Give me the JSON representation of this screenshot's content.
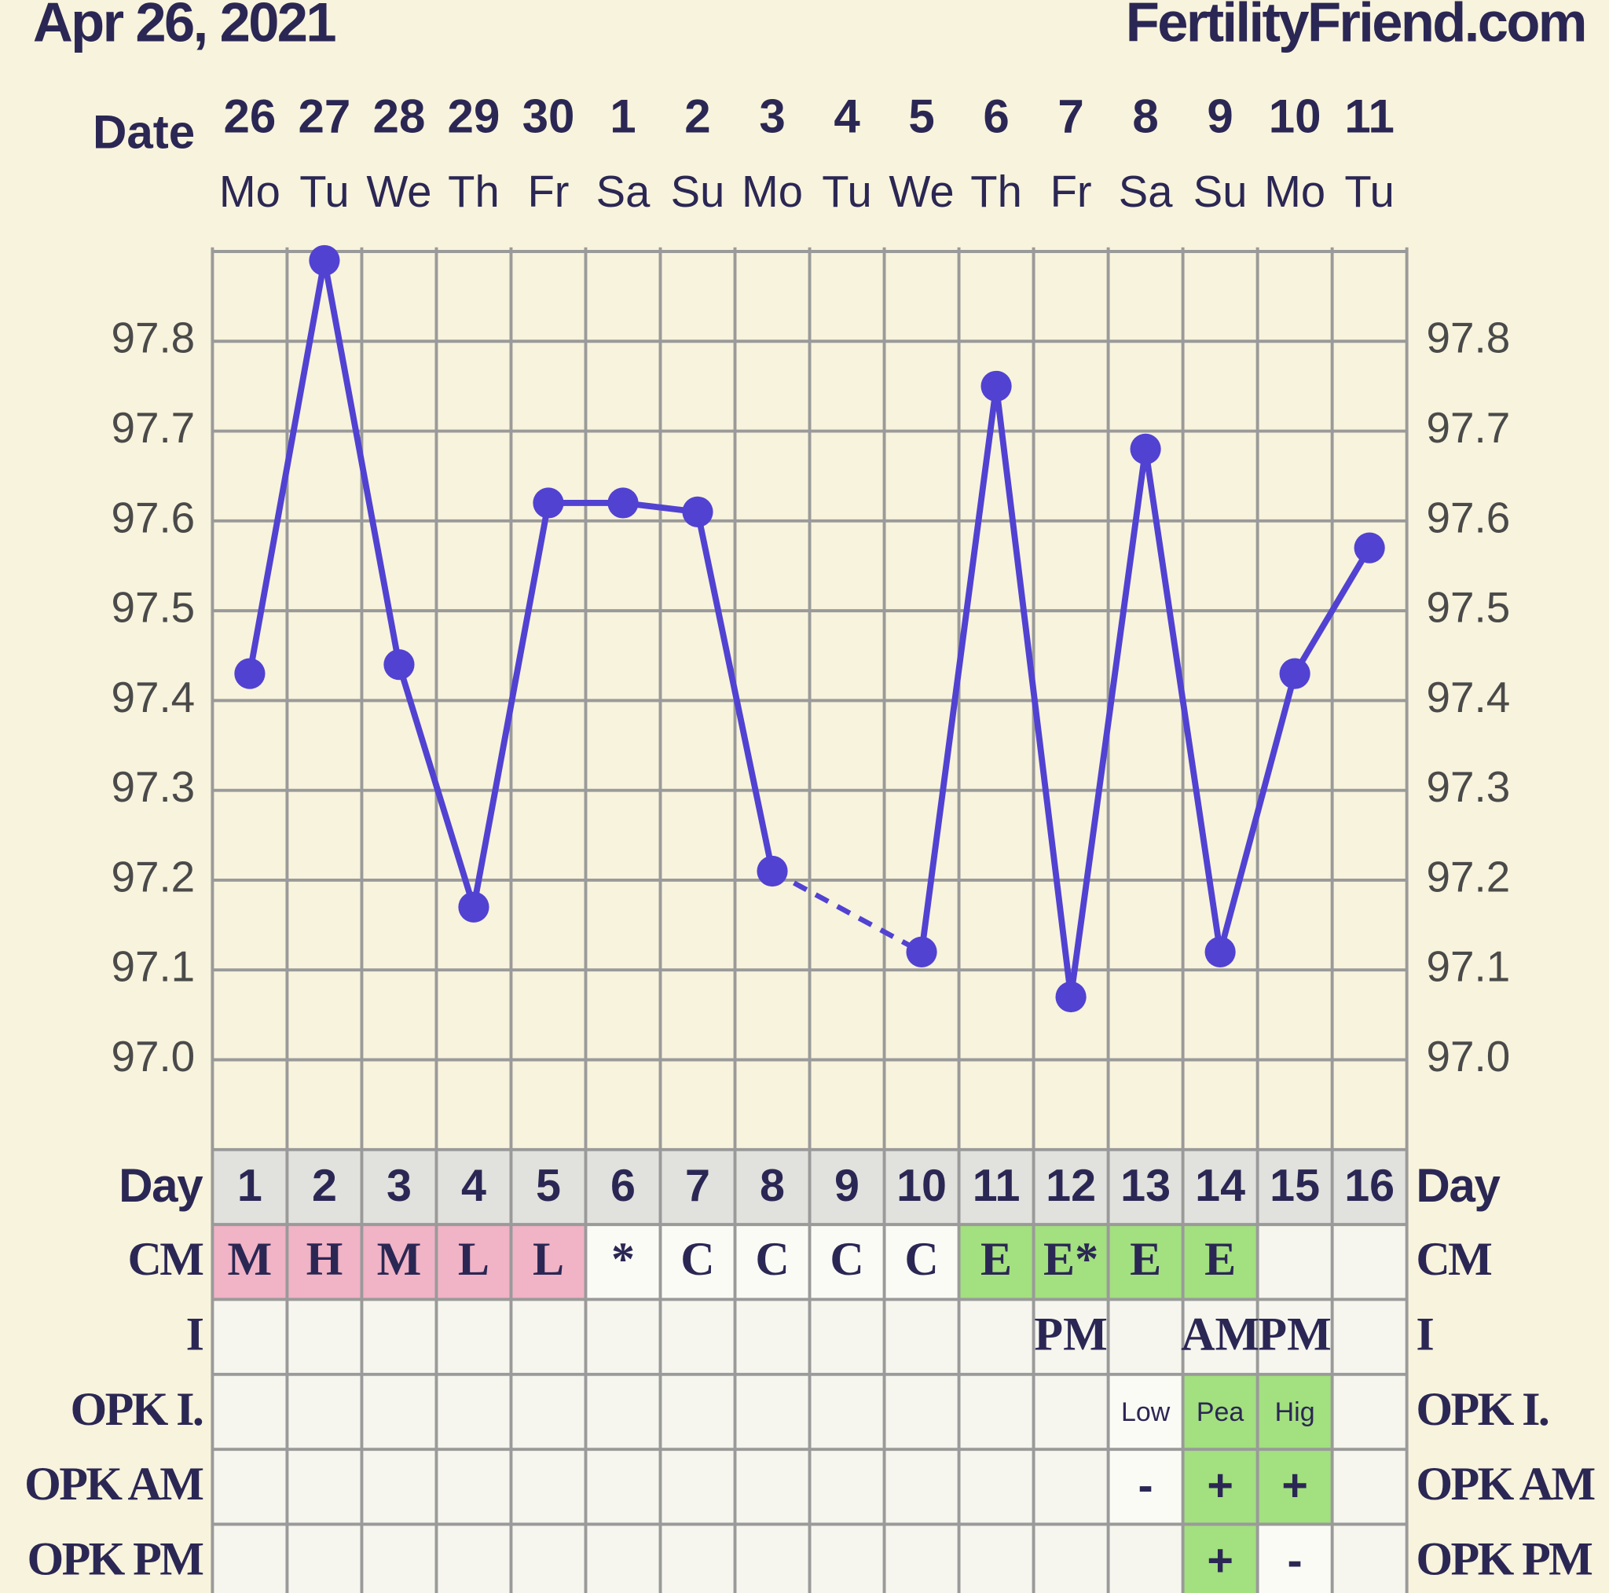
{
  "header": {
    "date": "Apr 26, 2021",
    "site": "FertilityFriend.com"
  },
  "chart_data": {
    "type": "line",
    "x_label": "Date",
    "categories": [
      "26",
      "27",
      "28",
      "29",
      "30",
      "1",
      "2",
      "3",
      "4",
      "5",
      "6",
      "7",
      "8",
      "9",
      "10",
      "11"
    ],
    "weekdays": [
      "Mo",
      "Tu",
      "We",
      "Th",
      "Fr",
      "Sa",
      "Su",
      "Mo",
      "Tu",
      "We",
      "Th",
      "Fr",
      "Sa",
      "Su",
      "Mo",
      "Tu"
    ],
    "series": [
      {
        "color": "#5142d2",
        "values": [
          97.43,
          97.89,
          97.44,
          97.17,
          97.62,
          97.62,
          97.61,
          97.21,
          null,
          97.12,
          97.75,
          97.07,
          97.68,
          97.12,
          97.43,
          97.57
        ]
      }
    ],
    "ylim": [
      96.9,
      97.9
    ],
    "yticks": [
      {
        "value": 97.0,
        "label": "97.0"
      },
      97.1,
      97.2,
      97.3,
      97.4,
      97.5,
      97.6,
      97.7,
      97.8
    ],
    "grid": true
  },
  "table": {
    "rows": [
      {
        "label": "Day",
        "style": "day",
        "cells": [
          "1",
          "2",
          "3",
          "4",
          "5",
          "6",
          "7",
          "8",
          "9",
          "10",
          "11",
          "12",
          "13",
          "14",
          "15",
          "16"
        ],
        "fills": [
          "#e1e1dd",
          "#e1e1dd",
          "#e1e1dd",
          "#e1e1dd",
          "#e1e1dd",
          "#e1e1dd",
          "#e1e1dd",
          "#e1e1dd",
          "#e1e1dd",
          "#e1e1dd",
          "#e1e1dd",
          "#e1e1dd",
          "#e1e1dd",
          "#e1e1dd",
          "#e1e1dd",
          "#e1e1dd"
        ]
      },
      {
        "label": "CM",
        "style": "cm",
        "cells": [
          "M",
          "H",
          "M",
          "L",
          "L",
          "*",
          "C",
          "C",
          "C",
          "C",
          "E",
          "E*",
          "E",
          "E",
          null,
          null
        ],
        "fills": [
          "#f1b3c6",
          "#f1b3c6",
          "#f1b3c6",
          "#f1b3c6",
          "#f1b3c6",
          "#fbfbf6",
          "#fbfbf6",
          "#fbfbf6",
          "#fbfbf6",
          "#fbfbf6",
          "#a3e07f",
          "#a3e07f",
          "#a3e07f",
          "#a3e07f",
          "#f6f6ef",
          "#f6f6ef"
        ]
      },
      {
        "label": "I",
        "style": "cm",
        "cells": [
          null,
          null,
          null,
          null,
          null,
          null,
          null,
          null,
          null,
          null,
          null,
          "PM",
          null,
          "AM",
          "PM",
          null
        ],
        "fills": [
          "#f6f6ef",
          "#f6f6ef",
          "#f6f6ef",
          "#f6f6ef",
          "#f6f6ef",
          "#f6f6ef",
          "#f6f6ef",
          "#f6f6ef",
          "#f6f6ef",
          "#f6f6ef",
          "#f6f6ef",
          "#f6f6ef",
          "#f6f6ef",
          "#f6f6ef",
          "#f6f6ef",
          "#f6f6ef"
        ]
      },
      {
        "label": "OPK I.",
        "style": "small",
        "cells": [
          null,
          null,
          null,
          null,
          null,
          null,
          null,
          null,
          null,
          null,
          null,
          null,
          "Low",
          "Pea",
          "Hig",
          null
        ],
        "fills": [
          "#f6f6ef",
          "#f6f6ef",
          "#f6f6ef",
          "#f6f6ef",
          "#f6f6ef",
          "#f6f6ef",
          "#f6f6ef",
          "#f6f6ef",
          "#f6f6ef",
          "#f6f6ef",
          "#f6f6ef",
          "#f6f6ef",
          "#fbfbf6",
          "#a3e07f",
          "#a3e07f",
          "#f6f6ef"
        ]
      },
      {
        "label": "OPK AM",
        "style": "plain",
        "cells": [
          null,
          null,
          null,
          null,
          null,
          null,
          null,
          null,
          null,
          null,
          null,
          null,
          "-",
          "+",
          "+",
          null
        ],
        "fills": [
          "#f6f6ef",
          "#f6f6ef",
          "#f6f6ef",
          "#f6f6ef",
          "#f6f6ef",
          "#f6f6ef",
          "#f6f6ef",
          "#f6f6ef",
          "#f6f6ef",
          "#f6f6ef",
          "#f6f6ef",
          "#f6f6ef",
          "#fbfbf6",
          "#a3e07f",
          "#a3e07f",
          "#f6f6ef"
        ]
      },
      {
        "label": "OPK PM",
        "style": "plain",
        "cells": [
          null,
          null,
          null,
          null,
          null,
          null,
          null,
          null,
          null,
          null,
          null,
          null,
          null,
          "+",
          "-",
          null
        ],
        "fills": [
          "#f6f6ef",
          "#f6f6ef",
          "#f6f6ef",
          "#f6f6ef",
          "#f6f6ef",
          "#f6f6ef",
          "#f6f6ef",
          "#f6f6ef",
          "#f6f6ef",
          "#f6f6ef",
          "#f6f6ef",
          "#f6f6ef",
          "#f6f6ef",
          "#a3e07f",
          "#fbfbf6",
          "#f6f6ef"
        ]
      }
    ]
  }
}
